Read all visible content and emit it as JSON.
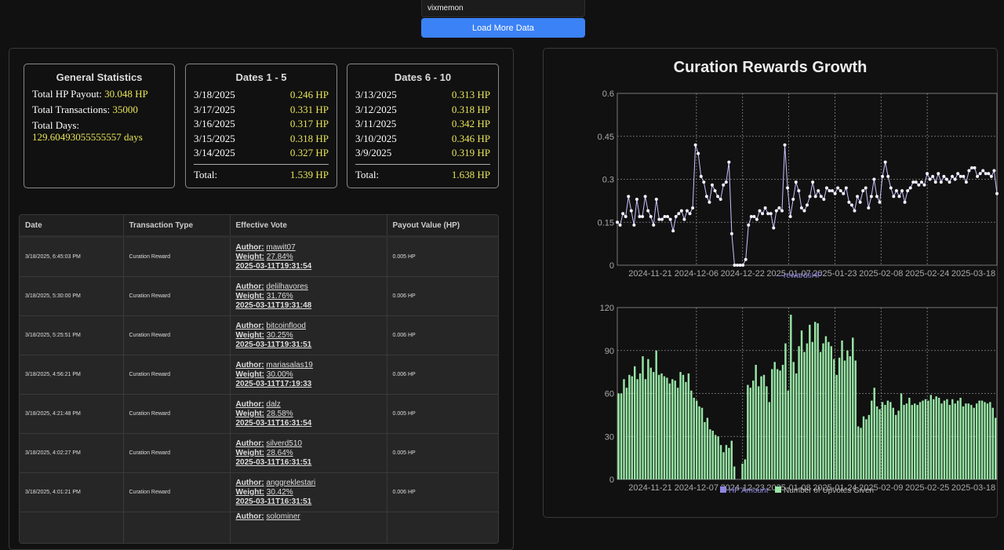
{
  "search": {
    "value": "vixmemon"
  },
  "load_button": "Load More Data",
  "general": {
    "title": "General Statistics",
    "hp_label": "Total HP Payout: ",
    "hp_value": "30.048 HP",
    "tx_label": "Total Transactions: ",
    "tx_value": "35000",
    "days_label": "Total Days:",
    "days_value": "129.60493055555557 days"
  },
  "dates1": {
    "title": "Dates 1 - 5",
    "rows": [
      {
        "date": "3/18/2025",
        "hp": "0.246 HP"
      },
      {
        "date": "3/17/2025",
        "hp": "0.331 HP"
      },
      {
        "date": "3/16/2025",
        "hp": "0.317 HP"
      },
      {
        "date": "3/15/2025",
        "hp": "0.318 HP"
      },
      {
        "date": "3/14/2025",
        "hp": "0.327 HP"
      }
    ],
    "total_label": "Total:",
    "total_value": "1.539 HP"
  },
  "dates2": {
    "title": "Dates 6 - 10",
    "rows": [
      {
        "date": "3/13/2025",
        "hp": "0.313 HP"
      },
      {
        "date": "3/12/2025",
        "hp": "0.318 HP"
      },
      {
        "date": "3/11/2025",
        "hp": "0.342 HP"
      },
      {
        "date": "3/10/2025",
        "hp": "0.346 HP"
      },
      {
        "date": "3/9/2025",
        "hp": "0.319 HP"
      }
    ],
    "total_label": "Total:",
    "total_value": "1.638 HP"
  },
  "table": {
    "headers": [
      "Date",
      "Transaction Type",
      "Effective Vote",
      "Payout Value (HP)"
    ],
    "author_label": "Author:",
    "weight_label": "Weight:",
    "rows": [
      {
        "date": "3/18/2025, 6:45:03 PM",
        "type": "Curation Reward",
        "author": "mawit07",
        "weight": "27.84%",
        "ts": "2025-03-11T19:31:54",
        "payout": "0.005 HP"
      },
      {
        "date": "3/18/2025, 5:30:00 PM",
        "type": "Curation Reward",
        "author": "delilhavores",
        "weight": "31.76%",
        "ts": "2025-03-11T19:31:48",
        "payout": "0.006 HP"
      },
      {
        "date": "3/18/2025, 5:25:51 PM",
        "type": "Curation Reward",
        "author": "bitcoinflood",
        "weight": "30.25%",
        "ts": "2025-03-11T19:31:51",
        "payout": "0.006 HP"
      },
      {
        "date": "3/18/2025, 4:56:21 PM",
        "type": "Curation Reward",
        "author": "mariasalas19",
        "weight": "30.00%",
        "ts": "2025-03-11T17:19:33",
        "payout": "0.006 HP"
      },
      {
        "date": "3/18/2025, 4:21:48 PM",
        "type": "Curation Reward",
        "author": "dalz",
        "weight": "28.58%",
        "ts": "2025-03-11T16:31:54",
        "payout": "0.005 HP"
      },
      {
        "date": "3/18/2025, 4:02:27 PM",
        "type": "Curation Reward",
        "author": "silverd510",
        "weight": "28.64%",
        "ts": "2025-03-11T16:31:51",
        "payout": "0.005 HP"
      },
      {
        "date": "3/18/2025, 4:01:21 PM",
        "type": "Curation Reward",
        "author": "anggreklestari",
        "weight": "30.42%",
        "ts": "2025-03-11T16:31:51",
        "payout": "0.006 HP"
      },
      {
        "date": "",
        "type": "",
        "author": "solominer",
        "weight": "",
        "ts": "",
        "payout": ""
      }
    ]
  },
  "chart_title": "Curation Rewards Growth",
  "colors": {
    "line": "#c9c3ff",
    "bars": "#98e6a6",
    "legend_hp": "#8f86e0",
    "yellow": "#e8e45a",
    "accent": "#3b82f6"
  },
  "chart_data": [
    {
      "type": "line",
      "ylim": [
        0,
        0.6
      ],
      "yticks": [
        "0",
        "0.15",
        "0.3",
        "0.45",
        "0.6"
      ],
      "xticks": [
        "2024-11-21",
        "2024-12-06",
        "2024-12-22",
        "2025-01-07",
        "2025-01-23",
        "2025-02-08",
        "2025-02-24",
        "2025-03-18"
      ],
      "legend": [
        "rewardsHP"
      ],
      "series": [
        {
          "name": "rewardsHP",
          "values": [
            0.15,
            0.14,
            0.18,
            0.17,
            0.24,
            0.19,
            0.14,
            0.23,
            0.17,
            0.17,
            0.24,
            0.19,
            0.17,
            0.14,
            0.23,
            0.16,
            0.16,
            0.17,
            0.17,
            0.16,
            0.12,
            0.17,
            0.18,
            0.19,
            0.16,
            0.19,
            0.18,
            0.2,
            0.42,
            0.39,
            0.31,
            0.29,
            0.24,
            0.22,
            0.28,
            0.26,
            0.24,
            0.23,
            0.28,
            0.29,
            0.36,
            0.11,
            0,
            0,
            0,
            0,
            0.02,
            0.14,
            0.17,
            0.17,
            0.16,
            0.19,
            0.18,
            0.2,
            0.18,
            0.18,
            0.13,
            0.19,
            0.2,
            0.19,
            0.42,
            0.27,
            0.17,
            0.23,
            0.29,
            0.26,
            0.2,
            0.19,
            0.21,
            0.24,
            0.29,
            0.24,
            0.26,
            0.24,
            0.23,
            0.27,
            0.26,
            0.26,
            0.25,
            0.27,
            0.26,
            0.25,
            0.27,
            0.22,
            0.21,
            0.19,
            0.24,
            0.22,
            0.26,
            0.27,
            0.2,
            0.24,
            0.3,
            0.24,
            0.22,
            0.31,
            0.36,
            0.31,
            0.27,
            0.24,
            0.26,
            0.24,
            0.26,
            0.22,
            0.26,
            0.27,
            0.29,
            0.29,
            0.28,
            0.29,
            0.28,
            0.32,
            0.3,
            0.31,
            0.29,
            0.32,
            0.29,
            0.31,
            0.3,
            0.29,
            0.31,
            0.3,
            0.32,
            0.31,
            0.31,
            0.29,
            0.33,
            0.34,
            0.34,
            0.31,
            0.32,
            0.33,
            0.32,
            0.32,
            0.31,
            0.33,
            0.25
          ]
        }
      ]
    },
    {
      "type": "bar",
      "ylim": [
        0,
        120
      ],
      "yticks": [
        "0",
        "30",
        "60",
        "90",
        "120"
      ],
      "xticks": [
        "2024-11-21",
        "2024-12-07",
        "2024-12-23",
        "2025-01-08",
        "2025-01-24",
        "2025-02-09",
        "2025-02-25",
        "2025-03-18"
      ],
      "legend": [
        "HP Amount",
        "Number of Upvotes Given"
      ],
      "series": [
        {
          "name": "Number of Upvotes Given",
          "values": [
            60,
            60,
            70,
            64,
            73,
            72,
            79,
            70,
            74,
            86,
            70,
            84,
            78,
            75,
            90,
            73,
            74,
            72,
            71,
            67,
            70,
            69,
            64,
            75,
            73,
            68,
            74,
            62,
            57,
            55,
            51,
            50,
            40,
            43,
            35,
            34,
            31,
            30,
            24,
            19,
            24,
            22,
            27,
            9,
            0,
            0,
            11,
            14,
            66,
            64,
            69,
            80,
            65,
            72,
            73,
            65,
            54,
            77,
            82,
            77,
            76,
            80,
            95,
            62,
            115,
            82,
            74,
            93,
            104,
            89,
            95,
            108,
            96,
            110,
            109,
            89,
            95,
            100,
            96,
            93,
            84,
            73,
            85,
            97,
            83,
            90,
            86,
            99,
            83,
            37,
            36,
            44,
            42,
            45,
            55,
            64,
            51,
            49,
            54,
            52,
            55,
            54,
            50,
            45,
            48,
            60,
            52,
            53,
            57,
            52,
            53,
            52,
            54,
            55,
            56,
            55,
            59,
            56,
            58,
            57,
            53,
            55,
            56,
            52,
            56,
            53,
            55,
            57,
            51,
            53,
            53,
            52,
            50,
            53,
            55,
            55,
            54,
            53,
            54,
            50,
            43
          ]
        }
      ]
    }
  ]
}
